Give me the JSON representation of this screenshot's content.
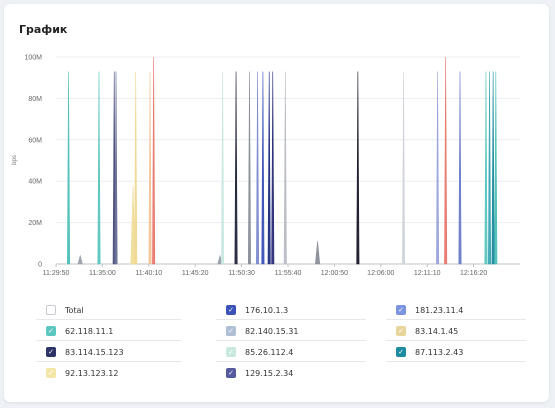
{
  "panel": {
    "title": "График"
  },
  "legend": {
    "items": [
      {
        "label": "Total",
        "color": "#ffffff",
        "checked": false
      },
      {
        "label": "176.10.1.3",
        "color": "#3b53b8",
        "checked": true
      },
      {
        "label": "181.23.11.4",
        "color": "#7c93e0",
        "checked": true
      },
      {
        "label": "62.118.11.1",
        "color": "#5cc6c0",
        "checked": true
      },
      {
        "label": "82.140.15.31",
        "color": "#aebfd6",
        "checked": true
      },
      {
        "label": "83.14.1.45",
        "color": "#e8d59a",
        "checked": true
      },
      {
        "label": "83.114.15.123",
        "color": "#2f3468",
        "checked": true
      },
      {
        "label": "85.26.112.4",
        "color": "#c8e8e0",
        "checked": true
      },
      {
        "label": "87.113.2.43",
        "color": "#1e8ca0",
        "checked": true
      },
      {
        "label": "92.13.123.12",
        "color": "#f3e6a6",
        "checked": true
      },
      {
        "label": "129.15.2.34",
        "color": "#565a9e",
        "checked": true
      }
    ]
  },
  "chart_data": {
    "type": "area",
    "title": "",
    "xlabel": "",
    "ylabel": "bps",
    "ylim": [
      0,
      100
    ],
    "y_ticks": [
      "0",
      "20M",
      "40M",
      "60M",
      "80M",
      "100M"
    ],
    "x_ticks": [
      "11:29:50",
      "11:35:00",
      "11:40:10",
      "11:45:20",
      "11:50:30",
      "11:55:40",
      "12:00:50",
      "12:06:00",
      "12:11:10",
      "12:16:20"
    ],
    "x_range_minutes": [
      0,
      51.8
    ],
    "grid": true,
    "legend_position": "bottom",
    "spikes": [
      {
        "series": "62.118.11.1",
        "t": 1.4,
        "value": 93,
        "color": "#4fbfb8"
      },
      {
        "series": "82.140.15.31",
        "t": 2.7,
        "value": 4,
        "color": "#9aa0a8"
      },
      {
        "series": "62.118.11.1",
        "t": 4.8,
        "value": 93,
        "color": "#5cc6c0"
      },
      {
        "series": "83.114.15.123",
        "t": 6.5,
        "value": 93,
        "color": "#4a4e7c"
      },
      {
        "series": "83.114.15.123",
        "t": 6.7,
        "value": 93,
        "color": "#6a6e94"
      },
      {
        "series": "92.13.123.12",
        "t": 8.6,
        "value": 38,
        "color": "#f0dd9a"
      },
      {
        "series": "92.13.123.12",
        "t": 8.9,
        "value": 93,
        "color": "#f0d894"
      },
      {
        "series": "83.14.1.45",
        "t": 10.5,
        "value": 93,
        "color": "#f2c49a"
      },
      {
        "series": "Total",
        "t": 10.9,
        "value": 100,
        "color": "#e8786e"
      },
      {
        "series": "82.140.15.31",
        "t": 18.3,
        "value": 4,
        "color": "#9aa0a8"
      },
      {
        "series": "85.26.112.4",
        "t": 18.6,
        "value": 93,
        "color": "#c8e8e0"
      },
      {
        "series": "83.114.15.123",
        "t": 20.1,
        "value": 93,
        "color": "#23253a"
      },
      {
        "series": "82.140.15.31",
        "t": 21.6,
        "value": 93,
        "color": "#8a8e98"
      },
      {
        "series": "181.23.11.4",
        "t": 22.5,
        "value": 93,
        "color": "#7c8bd0"
      },
      {
        "series": "176.10.1.3",
        "t": 23.1,
        "value": 93,
        "color": "#3b53b8"
      },
      {
        "series": "176.10.1.3",
        "t": 23.8,
        "value": 93,
        "color": "#1f2e80"
      },
      {
        "series": "129.15.2.34",
        "t": 24.2,
        "value": 93,
        "color": "#2a2e78"
      },
      {
        "series": "82.140.15.31",
        "t": 25.6,
        "value": 93,
        "color": "#b8bcc4"
      },
      {
        "series": "82.140.15.31",
        "t": 29.2,
        "value": 11,
        "color": "#8a8e98"
      },
      {
        "series": "83.114.15.123",
        "t": 33.7,
        "value": 93,
        "color": "#1a1a2a"
      },
      {
        "series": "85.26.112.4",
        "t": 38.8,
        "value": 93,
        "color": "#d0d4da"
      },
      {
        "series": "181.23.11.4",
        "t": 42.6,
        "value": 93,
        "color": "#9aa4d8"
      },
      {
        "series": "Total",
        "t": 43.5,
        "value": 100,
        "color": "#e8786e"
      },
      {
        "series": "176.10.1.3",
        "t": 45.1,
        "value": 93,
        "color": "#6c7cc8"
      },
      {
        "series": "62.118.11.1",
        "t": 48.0,
        "value": 93,
        "color": "#5cc6c0"
      },
      {
        "series": "87.113.2.43",
        "t": 48.4,
        "value": 93,
        "color": "#3aa6b4"
      },
      {
        "series": "87.113.2.43",
        "t": 48.8,
        "value": 93,
        "color": "#1e8ca0"
      },
      {
        "series": "62.118.11.1",
        "t": 49.1,
        "value": 93,
        "color": "#4fbfb8"
      }
    ]
  }
}
